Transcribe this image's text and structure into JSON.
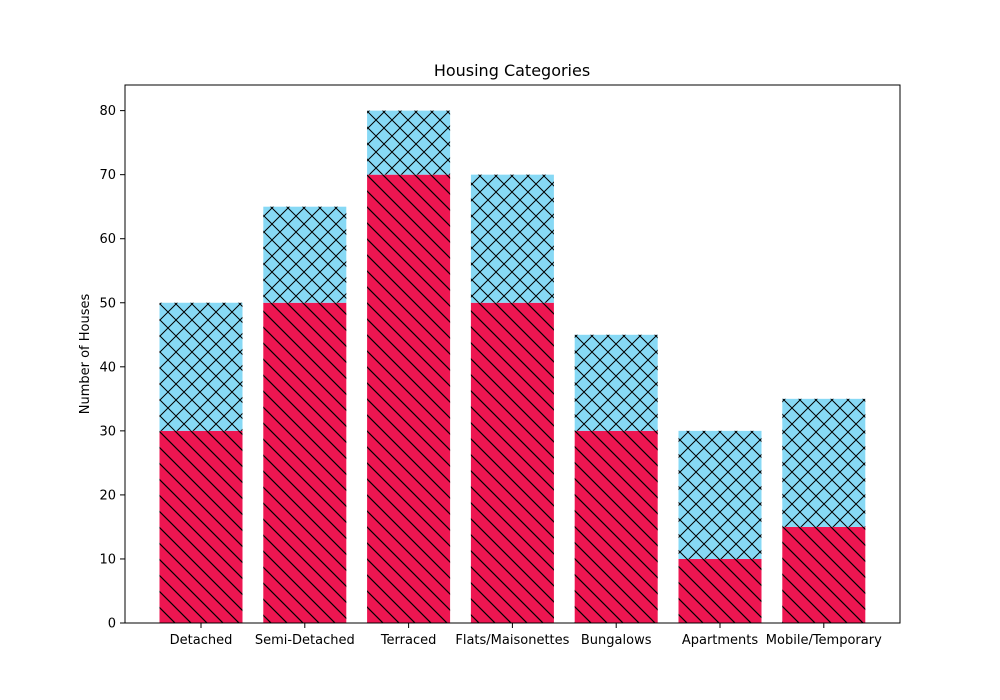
{
  "chart_data": {
    "type": "bar",
    "stacked": true,
    "title": "Housing Categories",
    "xlabel": "",
    "ylabel": "Number of Houses",
    "categories": [
      "Detached",
      "Semi-Detached",
      "Terraced",
      "Flats/Maisonettes",
      "Bungalows",
      "Apartments",
      "Mobile/Temporary"
    ],
    "series": [
      {
        "values": [
          30,
          50,
          70,
          50,
          30,
          10,
          15
        ],
        "color": "#ED1651",
        "hatch": "diagonal"
      },
      {
        "values": [
          20,
          15,
          10,
          20,
          15,
          20,
          20
        ],
        "color": "#87D9F5",
        "hatch": "crosshatch"
      }
    ],
    "ylim": [
      0,
      84
    ],
    "yticks": [
      0,
      10,
      20,
      30,
      40,
      50,
      60,
      70,
      80
    ],
    "grid": false
  }
}
